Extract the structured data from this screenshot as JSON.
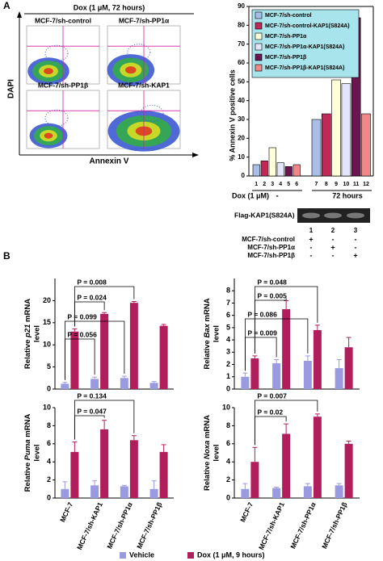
{
  "figure": {
    "panel_a": {
      "label": "A",
      "flow_title": "Dox (1 μM, 72 hours)",
      "flow_y_label": "DAPI",
      "flow_x_label": "Annexin V",
      "flow_plots": [
        "MCF-7/sh-control",
        "MCF-7/sh-PP1α",
        "MCF-7/sh-PP1β",
        "MCF-7/sh-KAP1"
      ],
      "dox_label": "Dox (1 μM)",
      "dox_groups": [
        "-",
        "72 hours"
      ],
      "blot": {
        "label": "Flag-KAP1(S824A)",
        "lanes": [
          "1",
          "2",
          "3"
        ],
        "rows": [
          {
            "name": "MCF-7/sh-control",
            "marks": [
              "+",
              "-",
              "-"
            ]
          },
          {
            "name": "MCF-7/sh-PP1α",
            "marks": [
              "-",
              "+",
              "-"
            ]
          },
          {
            "name": "MCF-7/sh-PP1β",
            "marks": [
              "-",
              "-",
              "+"
            ]
          }
        ]
      }
    },
    "panel_b": {
      "label": "B",
      "legend": [
        {
          "name": "Vehicle",
          "color": "#9a9ae0"
        },
        {
          "name": "Dox (1 μM, 9 hours)",
          "color": "#b01f5c"
        }
      ]
    }
  },
  "chart_data": [
    {
      "type": "bar",
      "ylabel": "% Annexin V positive cells",
      "categories": [
        "1",
        "2",
        "3",
        "4",
        "5",
        "6",
        "7",
        "8",
        "9",
        "10",
        "11",
        "12"
      ],
      "values": [
        6,
        8,
        15,
        7,
        5,
        6,
        30,
        33,
        51,
        49,
        84,
        33
      ],
      "legend": [
        {
          "name": "MCF-7/sh-control",
          "color": "#a8c0e8"
        },
        {
          "name": "MCF-7/sh-control-KAP1(S824A)",
          "color": "#c02858"
        },
        {
          "name": "MCF-7/sh-PP1α",
          "color": "#ffffd8"
        },
        {
          "name": "MCF-7/sh-PP1α-KAP1(S824A)",
          "color": "#e4e4fa"
        },
        {
          "name": "MCF-7/sh-PP1β",
          "color": "#6a1450"
        },
        {
          "name": "MCF-7/sh-PP1β-KAP1(S824A)",
          "color": "#f08888"
        }
      ],
      "legend_color": "#a8e4ec",
      "ylim": [
        0,
        90
      ],
      "yticks": [
        0,
        10,
        20,
        30,
        40,
        50,
        60,
        70,
        80,
        90
      ]
    },
    {
      "type": "grouped_bar",
      "ylabel": {
        "prefix": "Relative ",
        "gene": "p21",
        "suffix": " mRNA",
        "line2": "level"
      },
      "series": [
        {
          "values": [
            1.2,
            2.3,
            2.5,
            1.4
          ],
          "errors": [
            0.3,
            0.4,
            0.4,
            0.3
          ]
        },
        {
          "values": [
            13,
            17,
            19.5,
            14.3
          ],
          "errors": [
            0.6,
            0.3,
            0.3,
            0.3
          ]
        }
      ],
      "ylim": [
        0,
        25
      ],
      "yticks": [
        0,
        5,
        10,
        15,
        20
      ],
      "annotations": [
        "P = 0.008",
        "P = 0.024",
        "P = 0.099",
        "P = 0.056"
      ]
    },
    {
      "type": "grouped_bar",
      "ylabel": {
        "prefix": "Relative ",
        "gene": "Bax",
        "suffix": " mRNA",
        "line2": "level"
      },
      "series": [
        {
          "values": [
            1.0,
            2.1,
            2.3,
            1.7
          ],
          "errors": [
            0.3,
            0.3,
            0.4,
            0.7
          ]
        },
        {
          "values": [
            2.5,
            6.5,
            4.8,
            3.4
          ],
          "errors": [
            0.2,
            0.7,
            0.4,
            0.8
          ]
        }
      ],
      "ylim": [
        0,
        9
      ],
      "yticks": [
        0,
        1,
        2,
        3,
        4,
        5,
        6,
        7,
        8
      ],
      "annotations": [
        "P = 0.048",
        "P = 0.005",
        "P = 0.086",
        "P = 0.009"
      ]
    },
    {
      "type": "grouped_bar",
      "ylabel": {
        "prefix": "Relative ",
        "gene": "Puma",
        "suffix": " mRNA",
        "line2": "level"
      },
      "categories": [
        "MCF-7",
        "MCF-7/sh-KAP1",
        "MCF-7/sh-PP1α",
        "MCF-7/sh-PP1β"
      ],
      "series": [
        {
          "values": [
            1.0,
            1.4,
            1.3,
            1.0
          ],
          "errors": [
            0.8,
            0.5,
            0.1,
            0.9
          ]
        },
        {
          "values": [
            5.1,
            7.6,
            6.4,
            5.1
          ],
          "errors": [
            1.1,
            1.0,
            0.5,
            0.8
          ]
        }
      ],
      "ylim": [
        0,
        10
      ],
      "yticks": [
        0,
        2,
        4,
        6,
        8,
        10
      ],
      "annotations": [
        "P = 0.134",
        "P = 0.047"
      ]
    },
    {
      "type": "grouped_bar",
      "ylabel": {
        "prefix": "Relative ",
        "gene": "Noxa",
        "suffix": " mRNA",
        "line2": "level"
      },
      "categories": [
        "MCF-7",
        "MCF-7/sh-KAP1",
        "MCF-7/sh-PP1α",
        "MCF-7/sh-PP1β"
      ],
      "series": [
        {
          "values": [
            1.0,
            1.1,
            1.3,
            1.4
          ],
          "errors": [
            0.6,
            0.1,
            0.3,
            0.2
          ]
        },
        {
          "values": [
            4.0,
            7.1,
            9.0,
            6.0
          ],
          "errors": [
            1.6,
            1.1,
            0.3,
            0.3
          ]
        }
      ],
      "ylim": [
        0,
        10
      ],
      "yticks": [
        0,
        2,
        4,
        6,
        8,
        10
      ],
      "annotations": [
        "P = 0.007",
        "P = 0.02"
      ]
    }
  ]
}
